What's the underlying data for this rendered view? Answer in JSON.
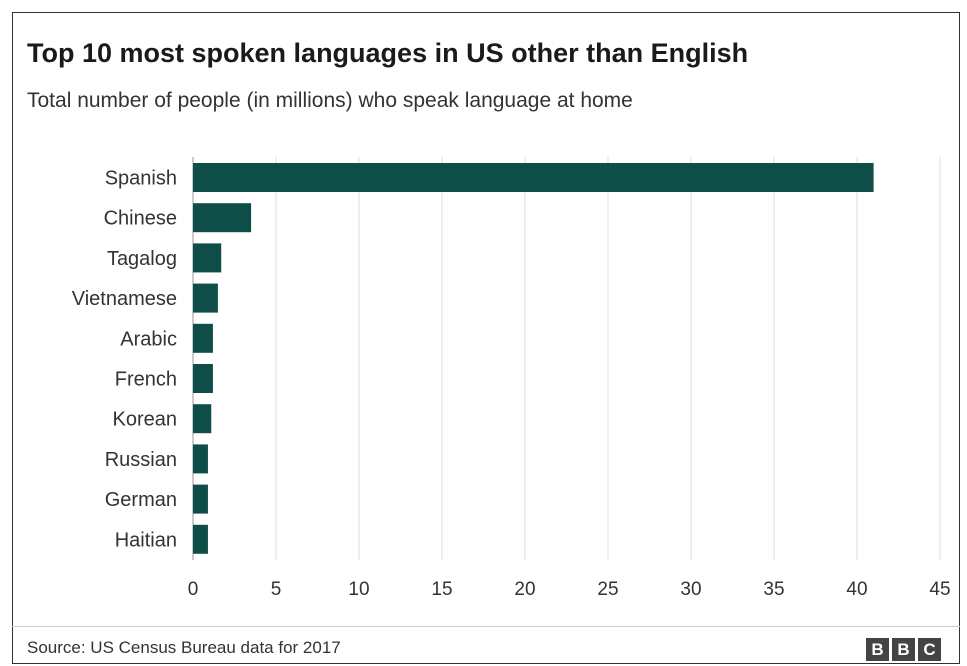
{
  "header": {
    "title": "Top 10 most spoken languages in US other than English",
    "subtitle": "Total number of people (in millions) who speak language at home"
  },
  "footer": {
    "source": "Source: US Census Bureau data for 2017",
    "logo_letters": [
      "B",
      "B",
      "C"
    ]
  },
  "colors": {
    "bar": "#0e4d48",
    "grid": "#dddddd",
    "text": "#333333"
  },
  "chart_data": {
    "type": "bar",
    "orientation": "horizontal",
    "title": "Top 10 most spoken languages in US other than English",
    "subtitle": "Total number of people (in millions) who speak language at home",
    "categories": [
      "Spanish",
      "Chinese",
      "Tagalog",
      "Vietnamese",
      "Arabic",
      "French",
      "Korean",
      "Russian",
      "German",
      "Haitian"
    ],
    "values": [
      41.0,
      3.5,
      1.7,
      1.5,
      1.2,
      1.2,
      1.1,
      0.9,
      0.9,
      0.9
    ],
    "xlim": [
      0,
      45
    ],
    "xticks": [
      0,
      5,
      10,
      15,
      20,
      25,
      30,
      35,
      40,
      45
    ],
    "xlabel": "",
    "ylabel": "",
    "grid": true,
    "legend": "none"
  }
}
